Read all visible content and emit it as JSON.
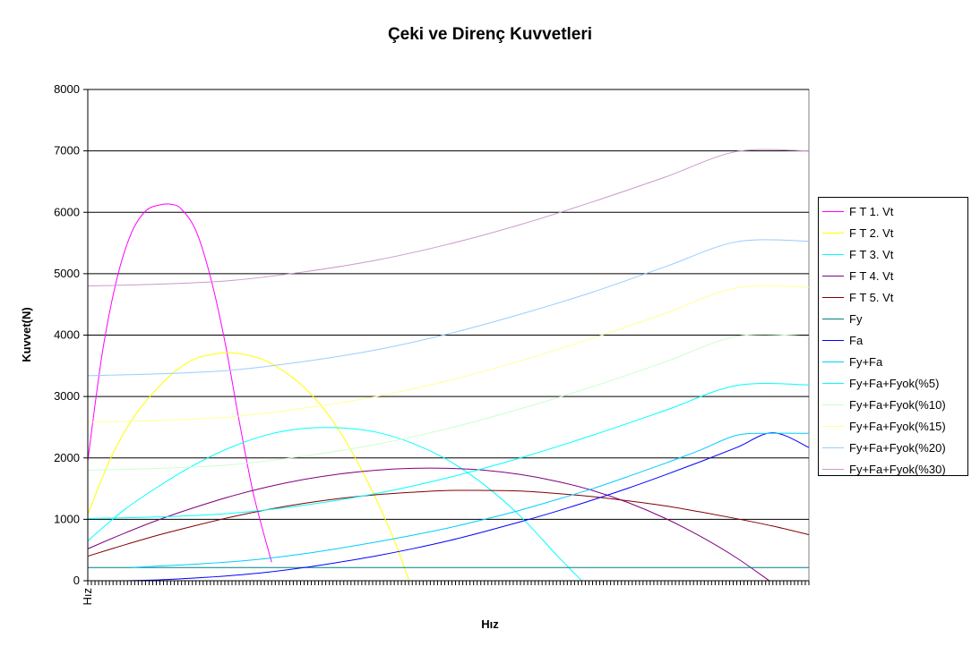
{
  "chart_data": {
    "type": "line",
    "title": "Çeki ve Direnç Kuvvetleri",
    "xlabel": "Hız",
    "ylabel": "Kuvvet(N)",
    "x_tick_labels": [
      "Hız"
    ],
    "ylim": [
      0,
      8000
    ],
    "y_ticks": [
      0,
      1000,
      2000,
      3000,
      4000,
      5000,
      6000,
      7000,
      8000
    ],
    "grid": true,
    "legend_position": "right",
    "x": [
      0,
      5,
      10,
      15,
      20,
      25,
      30,
      35,
      40,
      45,
      50,
      55,
      60,
      65,
      70,
      75,
      80,
      85,
      90,
      95,
      100
    ],
    "series": [
      {
        "name": "F T 1.  Vt",
        "color": "#ff00ff",
        "x": [
          0,
          2,
          4,
          6,
          8,
          10,
          11.6,
          13,
          15,
          17,
          19,
          21,
          23,
          25.5
        ],
        "values": [
          1950,
          3700,
          4900,
          5650,
          6020,
          6120,
          6130,
          6050,
          5700,
          4950,
          3900,
          2600,
          1400,
          300
        ]
      },
      {
        "name": "F T 2.  Vt",
        "color": "#ffff00",
        "x": [
          0,
          3,
          6,
          9,
          12,
          15,
          18,
          20,
          23,
          26,
          30,
          34,
          38,
          42,
          44.5
        ],
        "values": [
          1080,
          1950,
          2600,
          3050,
          3400,
          3620,
          3700,
          3710,
          3650,
          3500,
          3150,
          2600,
          1800,
          800,
          20
        ]
      },
      {
        "name": "F T 3.  Vt",
        "color": "#00ffff",
        "x": [
          0,
          5,
          10,
          15,
          20,
          25,
          30,
          35,
          40,
          45,
          50,
          55,
          60,
          65,
          68.5
        ],
        "values": [
          650,
          1150,
          1550,
          1900,
          2180,
          2380,
          2480,
          2490,
          2420,
          2240,
          1960,
          1560,
          1050,
          420,
          0
        ]
      },
      {
        "name": "F T 4.  Vt",
        "color": "#800080",
        "x": [
          0,
          5,
          10,
          15,
          20,
          25,
          30,
          35,
          40,
          45,
          50,
          55,
          60,
          65,
          70,
          75,
          80,
          85,
          90,
          94.5
        ],
        "values": [
          520,
          770,
          1000,
          1200,
          1380,
          1530,
          1650,
          1740,
          1800,
          1830,
          1830,
          1800,
          1730,
          1620,
          1470,
          1270,
          1020,
          720,
          370,
          0
        ]
      },
      {
        "name": "F T 5.  Vt",
        "color": "#800000",
        "x": [
          0,
          5,
          10,
          15,
          20,
          25,
          30,
          35,
          40,
          45,
          50,
          55,
          60,
          65,
          70,
          75,
          80,
          85,
          90,
          95,
          100
        ],
        "values": [
          400,
          580,
          750,
          900,
          1040,
          1160,
          1260,
          1340,
          1400,
          1440,
          1470,
          1470,
          1460,
          1420,
          1370,
          1300,
          1220,
          1120,
          1010,
          890,
          750
        ]
      },
      {
        "name": "Fy",
        "color": "#008080",
        "x": [
          0,
          100
        ],
        "values": [
          215,
          215
        ]
      },
      {
        "name": "Fa",
        "color": "#0000ff",
        "x": [
          5,
          10,
          15,
          20,
          25,
          30,
          35,
          40,
          45,
          50,
          55,
          60,
          65,
          70,
          75,
          80,
          85,
          90,
          95,
          100
        ],
        "values": [
          0,
          15,
          45,
          85,
          140,
          215,
          305,
          405,
          520,
          650,
          800,
          960,
          1130,
          1315,
          1510,
          1720,
          1940,
          2170,
          2410,
          2170
        ]
      },
      {
        "name": "Fy+Fa",
        "color": "#00ccff",
        "x": [
          6,
          10,
          15,
          20,
          25,
          30,
          35,
          40,
          45,
          50,
          55,
          60,
          65,
          70,
          75,
          80,
          85,
          90,
          95,
          100
        ],
        "values": [
          215,
          240,
          270,
          310,
          365,
          440,
          530,
          630,
          740,
          860,
          1000,
          1150,
          1320,
          1500,
          1700,
          1910,
          2130,
          2370,
          2400,
          2400
        ]
      },
      {
        "name": "Fy+Fa+Fyok(%5)",
        "color": "#00ffff",
        "x": [
          0,
          10,
          20,
          30,
          40,
          50,
          60,
          70,
          80,
          90,
          100
        ],
        "values": [
          1015,
          1040,
          1100,
          1230,
          1420,
          1680,
          2000,
          2370,
          2770,
          3180,
          3190
        ]
      },
      {
        "name": "Fy+Fa+Fyok(%10)",
        "color": "#ccffcc",
        "x": [
          0,
          10,
          20,
          30,
          40,
          50,
          60,
          70,
          80,
          90,
          100
        ],
        "values": [
          1800,
          1830,
          1890,
          2030,
          2220,
          2480,
          2800,
          3160,
          3560,
          3980,
          3980
        ]
      },
      {
        "name": "Fy+Fa+Fyok(%15)",
        "color": "#ffff99",
        "x": [
          0,
          10,
          20,
          30,
          40,
          50,
          60,
          70,
          80,
          90,
          100
        ],
        "values": [
          2580,
          2610,
          2670,
          2810,
          3000,
          3260,
          3580,
          3950,
          4350,
          4770,
          4780
        ]
      },
      {
        "name": "Fy+Fa+Fyok(%20)",
        "color": "#99ccff",
        "x": [
          0,
          10,
          20,
          30,
          40,
          50,
          60,
          70,
          80,
          90,
          100
        ],
        "values": [
          3340,
          3370,
          3430,
          3570,
          3760,
          4020,
          4340,
          4700,
          5110,
          5520,
          5530
        ]
      },
      {
        "name": "Fy+Fa+Fyok(%30)",
        "color": "#cc99cc",
        "x": [
          0,
          10,
          20,
          30,
          40,
          50,
          60,
          70,
          80,
          90,
          100
        ],
        "values": [
          4800,
          4830,
          4890,
          5030,
          5220,
          5480,
          5800,
          6170,
          6570,
          6990,
          7000
        ]
      }
    ]
  }
}
